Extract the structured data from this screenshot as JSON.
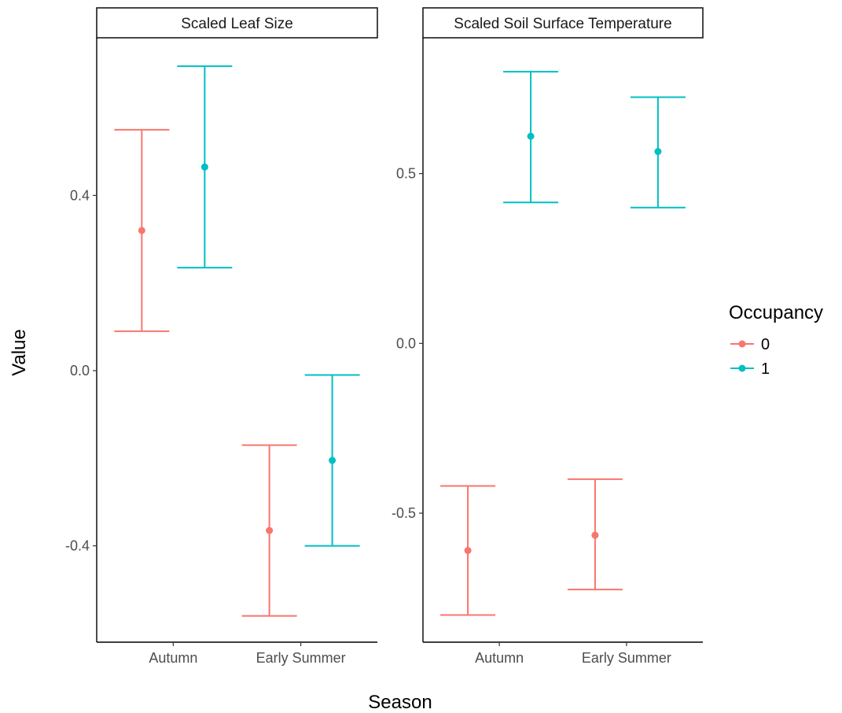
{
  "chart_data": {
    "type": "scatter",
    "subtype": "point-errorbar-faceted",
    "xlabel": "Season",
    "ylabel": "Value",
    "categories": [
      "Autumn",
      "Early Summer"
    ],
    "legend": {
      "title": "Occupancy",
      "placement": "right",
      "entries": [
        {
          "label": "0",
          "color": "#F8766D"
        },
        {
          "label": "1",
          "color": "#00BFC4"
        }
      ]
    },
    "grid": false,
    "panels": [
      {
        "title": "Scaled Leaf Size",
        "ylim": [
          -0.62,
          0.76
        ],
        "yticks": [
          -0.4,
          0.0,
          0.4
        ],
        "ytick_labels": [
          "-0.4",
          "0.0",
          "0.4"
        ],
        "series": [
          {
            "name": "0",
            "color": "#F8766D",
            "points": [
              {
                "x": "Autumn",
                "y": 0.32,
                "ymin": 0.09,
                "ymax": 0.55
              },
              {
                "x": "Early Summer",
                "y": -0.365,
                "ymin": -0.56,
                "ymax": -0.17
              }
            ]
          },
          {
            "name": "1",
            "color": "#00BFC4",
            "points": [
              {
                "x": "Autumn",
                "y": 0.465,
                "ymin": 0.235,
                "ymax": 0.695
              },
              {
                "x": "Early Summer",
                "y": -0.205,
                "ymin": -0.4,
                "ymax": -0.01
              }
            ]
          }
        ]
      },
      {
        "title": "Scaled Soil Surface Temperature",
        "ylim": [
          -0.88,
          0.9
        ],
        "yticks": [
          -0.5,
          0.0,
          0.5
        ],
        "ytick_labels": [
          "-0.5",
          "0.0",
          "0.5"
        ],
        "series": [
          {
            "name": "0",
            "color": "#F8766D",
            "points": [
              {
                "x": "Autumn",
                "y": -0.61,
                "ymin": -0.8,
                "ymax": -0.42
              },
              {
                "x": "Early Summer",
                "y": -0.565,
                "ymin": -0.725,
                "ymax": -0.4
              }
            ]
          },
          {
            "name": "1",
            "color": "#00BFC4",
            "points": [
              {
                "x": "Autumn",
                "y": 0.61,
                "ymin": 0.415,
                "ymax": 0.8
              },
              {
                "x": "Early Summer",
                "y": 0.565,
                "ymin": 0.4,
                "ymax": 0.725
              }
            ]
          }
        ]
      }
    ]
  }
}
